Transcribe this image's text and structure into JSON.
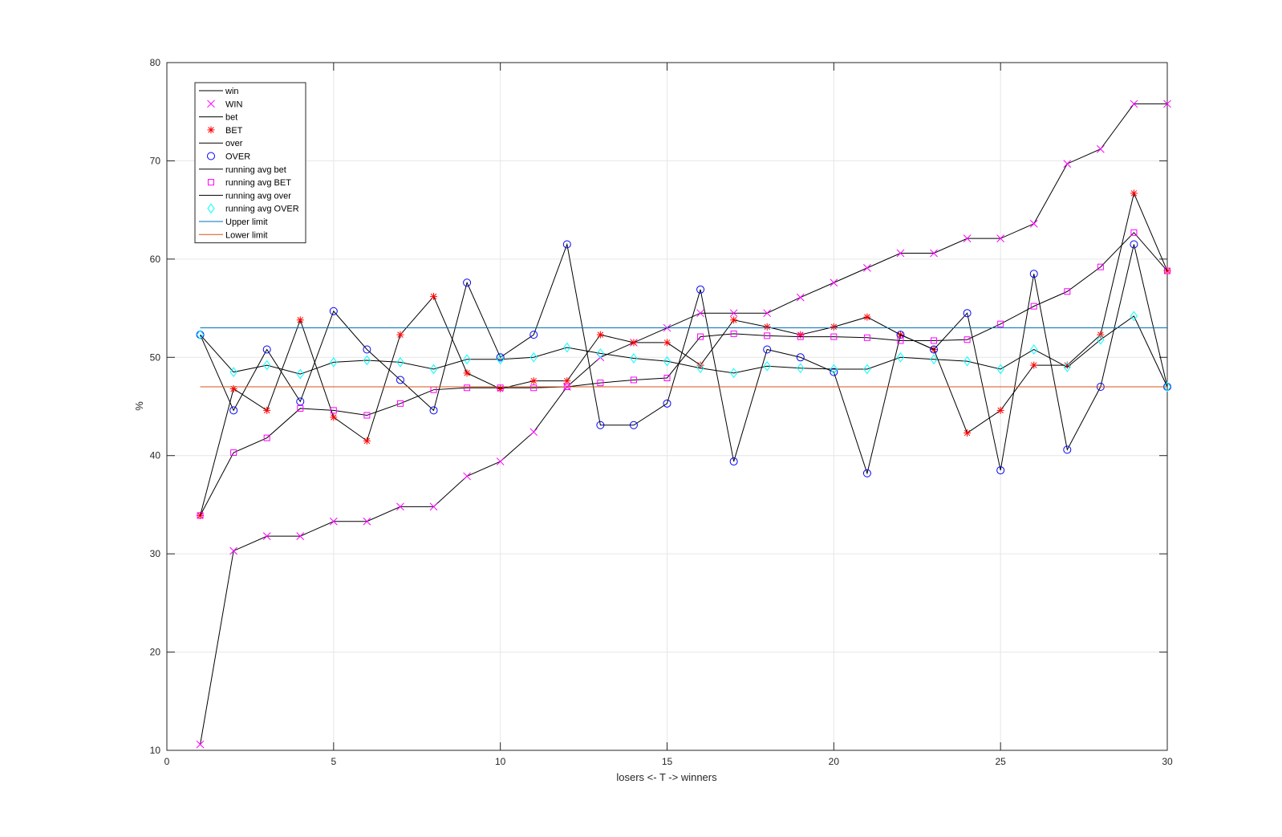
{
  "chart_data": {
    "type": "line",
    "title": "",
    "xlabel": "losers <- T -> winners",
    "ylabel": "%",
    "xlim": [
      0,
      30
    ],
    "ylim": [
      10,
      80
    ],
    "xticks": [
      0,
      5,
      10,
      15,
      20,
      25,
      30
    ],
    "yticks": [
      10,
      20,
      30,
      40,
      50,
      60,
      70,
      80
    ],
    "grid": true,
    "legend_position": "top-left",
    "x": [
      1,
      2,
      3,
      4,
      5,
      6,
      7,
      8,
      9,
      10,
      11,
      12,
      13,
      14,
      15,
      16,
      17,
      18,
      19,
      20,
      21,
      22,
      23,
      24,
      25,
      26,
      27,
      28,
      29,
      30
    ],
    "series": [
      {
        "name": "win",
        "marker": "none",
        "color": "#000000",
        "values": [
          10.6,
          30.3,
          31.8,
          31.8,
          33.3,
          33.3,
          34.8,
          34.8,
          37.9,
          39.4,
          42.4,
          47.0,
          50.0,
          51.5,
          53.0,
          54.5,
          54.5,
          54.5,
          56.1,
          57.6,
          59.1,
          60.6,
          60.6,
          62.1,
          62.1,
          63.6,
          69.7,
          71.2,
          75.8,
          75.8
        ]
      },
      {
        "name": "WIN",
        "marker": "x",
        "color": "#ff00ff",
        "values": [
          10.6,
          30.3,
          31.8,
          31.8,
          33.3,
          33.3,
          34.8,
          34.8,
          37.9,
          39.4,
          42.4,
          47.0,
          50.0,
          51.5,
          53.0,
          54.5,
          54.5,
          54.5,
          56.1,
          57.6,
          59.1,
          60.6,
          60.6,
          62.1,
          62.1,
          63.6,
          69.7,
          71.2,
          75.8,
          75.8
        ]
      },
      {
        "name": "bet",
        "marker": "none",
        "color": "#000000",
        "values": [
          33.9,
          46.8,
          44.6,
          53.8,
          43.9,
          41.5,
          52.3,
          56.2,
          48.4,
          46.8,
          47.6,
          47.6,
          52.3,
          51.5,
          51.5,
          49.2,
          53.8,
          53.1,
          52.3,
          53.1,
          54.1,
          52.3,
          50.8,
          42.3,
          44.6,
          49.2,
          49.2,
          52.3,
          66.7,
          58.8
        ]
      },
      {
        "name": "BET",
        "marker": "asterisk",
        "color": "#ff0000",
        "values": [
          33.9,
          46.8,
          44.6,
          53.8,
          43.9,
          41.5,
          52.3,
          56.2,
          48.4,
          46.8,
          47.6,
          47.6,
          52.3,
          51.5,
          51.5,
          49.2,
          53.8,
          53.1,
          52.3,
          53.1,
          54.1,
          52.3,
          50.8,
          42.3,
          44.6,
          49.2,
          49.2,
          52.3,
          66.7,
          58.8
        ]
      },
      {
        "name": "over",
        "marker": "none",
        "color": "#000000",
        "values": [
          52.3,
          44.6,
          50.8,
          45.5,
          54.7,
          50.8,
          47.7,
          44.6,
          57.6,
          50.0,
          52.3,
          61.5,
          43.1,
          43.1,
          45.3,
          56.9,
          39.4,
          50.8,
          50.0,
          48.5,
          38.2,
          52.3,
          50.8,
          54.5,
          38.5,
          58.5,
          40.6,
          47.0,
          61.5,
          47.0
        ]
      },
      {
        "name": "OVER",
        "marker": "circle",
        "color": "#0000ff",
        "values": [
          52.3,
          44.6,
          50.8,
          45.5,
          54.7,
          50.8,
          47.7,
          44.6,
          57.6,
          50.0,
          52.3,
          61.5,
          43.1,
          43.1,
          45.3,
          56.9,
          39.4,
          50.8,
          50.0,
          48.5,
          38.2,
          52.3,
          50.8,
          54.5,
          38.5,
          58.5,
          40.6,
          47.0,
          61.5,
          47.0
        ]
      },
      {
        "name": "running avg bet",
        "marker": "none",
        "color": "#000000",
        "values": [
          33.9,
          40.3,
          41.8,
          44.8,
          44.6,
          44.1,
          45.3,
          46.7,
          46.9,
          46.9,
          46.9,
          47.0,
          47.4,
          47.7,
          47.9,
          52.1,
          52.4,
          52.2,
          52.1,
          52.1,
          52.0,
          51.7,
          51.7,
          51.8,
          53.4,
          55.2,
          56.7,
          59.2,
          62.7,
          58.8
        ]
      },
      {
        "name": "running avg BET",
        "marker": "square",
        "color": "#ff00ff",
        "values": [
          33.9,
          40.3,
          41.8,
          44.8,
          44.6,
          44.1,
          45.3,
          46.7,
          46.9,
          46.9,
          46.9,
          47.0,
          47.4,
          47.7,
          47.9,
          52.1,
          52.4,
          52.2,
          52.1,
          52.1,
          52.0,
          51.7,
          51.7,
          51.8,
          53.4,
          55.2,
          56.7,
          59.2,
          62.7,
          58.8
        ]
      },
      {
        "name": "running avg over",
        "marker": "none",
        "color": "#000000",
        "values": [
          52.3,
          48.5,
          49.2,
          48.3,
          49.5,
          49.7,
          49.5,
          48.8,
          49.8,
          49.8,
          50.0,
          51.0,
          50.4,
          49.9,
          49.6,
          48.9,
          48.4,
          49.1,
          48.9,
          48.8,
          48.8,
          50.0,
          49.8,
          49.6,
          48.8,
          50.8,
          49.0,
          51.8,
          54.2,
          47.0
        ]
      },
      {
        "name": "running avg OVER",
        "marker": "diamond",
        "color": "#00ffff",
        "values": [
          52.3,
          48.5,
          49.2,
          48.3,
          49.5,
          49.7,
          49.5,
          48.8,
          49.8,
          49.8,
          50.0,
          51.0,
          50.4,
          49.9,
          49.6,
          48.9,
          48.4,
          49.1,
          48.9,
          48.8,
          48.8,
          50.0,
          49.8,
          49.6,
          48.8,
          50.8,
          49.0,
          51.8,
          54.2,
          47.0
        ]
      },
      {
        "name": "Upper limit",
        "marker": "none",
        "color": "#0072bd",
        "values": [
          53,
          53,
          53,
          53,
          53,
          53,
          53,
          53,
          53,
          53,
          53,
          53,
          53,
          53,
          53,
          53,
          53,
          53,
          53,
          53,
          53,
          53,
          53,
          53,
          53,
          53,
          53,
          53,
          53,
          53
        ]
      },
      {
        "name": "Lower limit",
        "marker": "none",
        "color": "#d95319",
        "values": [
          47,
          47,
          47,
          47,
          47,
          47,
          47,
          47,
          47,
          47,
          47,
          47,
          47,
          47,
          47,
          47,
          47,
          47,
          47,
          47,
          47,
          47,
          47,
          47,
          47,
          47,
          47,
          47,
          47,
          47
        ]
      }
    ]
  }
}
